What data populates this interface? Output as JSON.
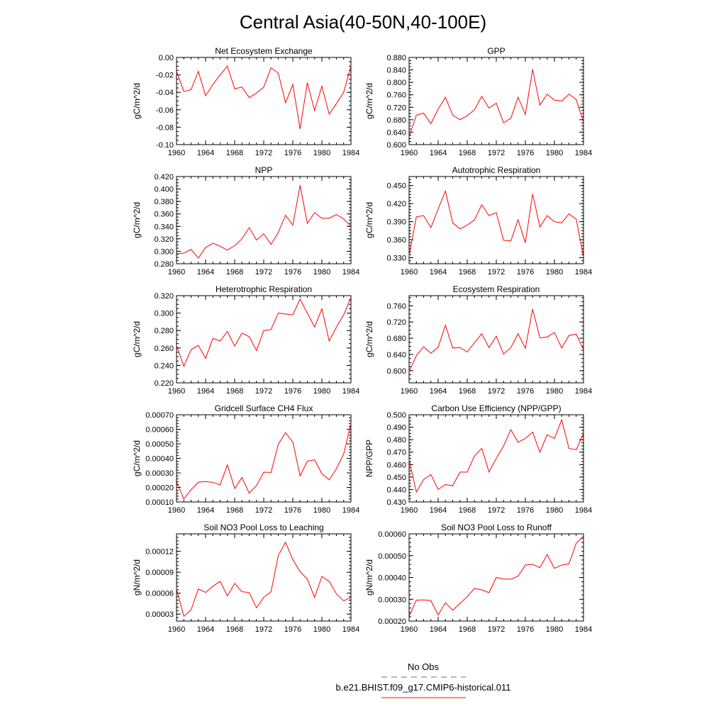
{
  "figure": {
    "title": "Central Asia(40-50N,40-100E)",
    "legend": [
      {
        "label": "No Obs",
        "color": "#6666dd",
        "dash": true
      },
      {
        "label": "b.e21.BHIST.f09_g17.CMIP6-historical.011",
        "color": "#ff0000",
        "dash": false
      }
    ]
  },
  "chart_data": [
    {
      "type": "line",
      "title": "Net Ecosystem Exchange",
      "ylabel": "gC/m^2/d",
      "xlim": [
        1960,
        1984
      ],
      "xticks": [
        1960,
        1964,
        1968,
        1972,
        1976,
        1980,
        1984
      ],
      "ylim": [
        -0.1,
        0.0
      ],
      "yticks": [
        "-0.10",
        "-0.08",
        "-0.06",
        "-0.04",
        "-0.02",
        "0.00"
      ],
      "ytick_values": [
        -0.1,
        -0.08,
        -0.06,
        -0.04,
        -0.02,
        0.0
      ],
      "yminor": 0.005,
      "x": [
        1960,
        1961,
        1962,
        1963,
        1964,
        1965,
        1966,
        1967,
        1968,
        1969,
        1970,
        1971,
        1972,
        1973,
        1974,
        1975,
        1976,
        1977,
        1978,
        1979,
        1980,
        1981,
        1982,
        1983,
        1984
      ],
      "y": [
        -0.016,
        -0.039,
        -0.037,
        -0.016,
        -0.044,
        -0.031,
        -0.02,
        -0.01,
        -0.036,
        -0.034,
        -0.046,
        -0.041,
        -0.034,
        -0.012,
        -0.018,
        -0.052,
        -0.031,
        -0.082,
        -0.029,
        -0.061,
        -0.033,
        -0.065,
        -0.053,
        -0.04,
        -0.01
      ]
    },
    {
      "type": "line",
      "title": "GPP",
      "ylabel": "gC/m^2/d",
      "xlim": [
        1960,
        1984
      ],
      "xticks": [
        1960,
        1964,
        1968,
        1972,
        1976,
        1980,
        1984
      ],
      "ylim": [
        0.6,
        0.88
      ],
      "yticks": [
        "0.600",
        "0.640",
        "0.680",
        "0.720",
        "0.760",
        "0.800",
        "0.840",
        "0.880"
      ],
      "ytick_values": [
        0.6,
        0.64,
        0.68,
        0.72,
        0.76,
        0.8,
        0.84,
        0.88
      ],
      "yminor": 0.01,
      "x": [
        1960,
        1961,
        1962,
        1963,
        1964,
        1965,
        1966,
        1967,
        1968,
        1969,
        1970,
        1971,
        1972,
        1973,
        1974,
        1975,
        1976,
        1977,
        1978,
        1979,
        1980,
        1981,
        1982,
        1983,
        1984
      ],
      "y": [
        0.625,
        0.695,
        0.701,
        0.667,
        0.714,
        0.752,
        0.695,
        0.68,
        0.693,
        0.712,
        0.755,
        0.717,
        0.733,
        0.67,
        0.685,
        0.752,
        0.697,
        0.842,
        0.727,
        0.762,
        0.743,
        0.74,
        0.762,
        0.745,
        0.672
      ]
    },
    {
      "type": "line",
      "title": "NPP",
      "ylabel": "gC/m^2/d",
      "xlim": [
        1960,
        1984
      ],
      "xticks": [
        1960,
        1964,
        1968,
        1972,
        1976,
        1980,
        1984
      ],
      "ylim": [
        0.28,
        0.42
      ],
      "yticks": [
        "0.280",
        "0.300",
        "0.320",
        "0.340",
        "0.360",
        "0.380",
        "0.400",
        "0.420"
      ],
      "ytick_values": [
        0.28,
        0.3,
        0.32,
        0.34,
        0.36,
        0.38,
        0.4,
        0.42
      ],
      "yminor": 0.005,
      "x": [
        1960,
        1961,
        1962,
        1963,
        1964,
        1965,
        1966,
        1967,
        1968,
        1969,
        1970,
        1971,
        1972,
        1973,
        1974,
        1975,
        1976,
        1977,
        1978,
        1979,
        1980,
        1981,
        1982,
        1983,
        1984
      ],
      "y": [
        0.296,
        0.297,
        0.303,
        0.289,
        0.306,
        0.313,
        0.308,
        0.302,
        0.309,
        0.32,
        0.338,
        0.318,
        0.328,
        0.311,
        0.33,
        0.358,
        0.342,
        0.406,
        0.345,
        0.362,
        0.353,
        0.353,
        0.359,
        0.352,
        0.34
      ]
    },
    {
      "type": "line",
      "title": "Autotrophic Respiration",
      "ylabel": "gC/m^2/d",
      "xlim": [
        1960,
        1984
      ],
      "xticks": [
        1960,
        1964,
        1968,
        1972,
        1976,
        1980,
        1984
      ],
      "ylim": [
        0.32,
        0.465
      ],
      "yticks": [
        "0.330",
        "0.360",
        "0.390",
        "0.420",
        "0.450"
      ],
      "ytick_values": [
        0.33,
        0.36,
        0.39,
        0.42,
        0.45
      ],
      "yminor": 0.005,
      "x": [
        1960,
        1961,
        1962,
        1963,
        1964,
        1965,
        1966,
        1967,
        1968,
        1969,
        1970,
        1971,
        1972,
        1973,
        1974,
        1975,
        1976,
        1977,
        1978,
        1979,
        1980,
        1981,
        1982,
        1983,
        1984
      ],
      "y": [
        0.333,
        0.398,
        0.4,
        0.38,
        0.411,
        0.441,
        0.388,
        0.378,
        0.384,
        0.393,
        0.418,
        0.4,
        0.405,
        0.359,
        0.358,
        0.393,
        0.355,
        0.436,
        0.381,
        0.4,
        0.39,
        0.388,
        0.403,
        0.394,
        0.331
      ]
    },
    {
      "type": "line",
      "title": "Heterotrophic Respiration",
      "ylabel": "gC/m^2/d",
      "xlim": [
        1960,
        1984
      ],
      "xticks": [
        1960,
        1964,
        1968,
        1972,
        1976,
        1980,
        1984
      ],
      "ylim": [
        0.22,
        0.32
      ],
      "yticks": [
        "0.220",
        "0.240",
        "0.260",
        "0.280",
        "0.300",
        "0.320"
      ],
      "ytick_values": [
        0.22,
        0.24,
        0.26,
        0.28,
        0.3,
        0.32
      ],
      "yminor": 0.005,
      "x": [
        1960,
        1961,
        1962,
        1963,
        1964,
        1965,
        1966,
        1967,
        1968,
        1969,
        1970,
        1971,
        1972,
        1973,
        1974,
        1975,
        1976,
        1977,
        1978,
        1979,
        1980,
        1981,
        1982,
        1983,
        1984
      ],
      "y": [
        0.263,
        0.239,
        0.258,
        0.263,
        0.248,
        0.271,
        0.268,
        0.279,
        0.262,
        0.277,
        0.273,
        0.257,
        0.28,
        0.281,
        0.3,
        0.299,
        0.298,
        0.316,
        0.3,
        0.284,
        0.305,
        0.268,
        0.284,
        0.298,
        0.318
      ]
    },
    {
      "type": "line",
      "title": "Ecosystem Respiration",
      "ylabel": "gC/m^2/d",
      "xlim": [
        1960,
        1984
      ],
      "xticks": [
        1960,
        1964,
        1968,
        1972,
        1976,
        1980,
        1984
      ],
      "ylim": [
        0.57,
        0.785
      ],
      "yticks": [
        "0.600",
        "0.640",
        "0.680",
        "0.720",
        "0.760"
      ],
      "ytick_values": [
        0.6,
        0.64,
        0.68,
        0.72,
        0.76
      ],
      "yminor": 0.01,
      "x": [
        1960,
        1961,
        1962,
        1963,
        1964,
        1965,
        1966,
        1967,
        1968,
        1969,
        1970,
        1971,
        1972,
        1973,
        1974,
        1975,
        1976,
        1977,
        1978,
        1979,
        1980,
        1981,
        1982,
        1983,
        1984
      ],
      "y": [
        0.598,
        0.637,
        0.659,
        0.643,
        0.658,
        0.712,
        0.656,
        0.657,
        0.646,
        0.669,
        0.691,
        0.657,
        0.685,
        0.641,
        0.657,
        0.691,
        0.655,
        0.752,
        0.681,
        0.683,
        0.694,
        0.656,
        0.687,
        0.69,
        0.652
      ]
    },
    {
      "type": "line",
      "title": "Gridcell Surface CH4 Flux",
      "ylabel": "gC/m^2/d",
      "xlim": [
        1960,
        1984
      ],
      "xticks": [
        1960,
        1964,
        1968,
        1972,
        1976,
        1980,
        1984
      ],
      "ylim": [
        0.0001,
        0.0007
      ],
      "yticks": [
        "0.00010",
        "0.00020",
        "0.00030",
        "0.00040",
        "0.00050",
        "0.00060",
        "0.00070"
      ],
      "ytick_values": [
        0.0001,
        0.0002,
        0.0003,
        0.0004,
        0.0005,
        0.0006,
        0.0007
      ],
      "yminor": 2e-05,
      "x": [
        1960,
        1961,
        1962,
        1963,
        1964,
        1965,
        1966,
        1967,
        1968,
        1969,
        1970,
        1971,
        1972,
        1973,
        1974,
        1975,
        1976,
        1977,
        1978,
        1979,
        1980,
        1981,
        1982,
        1983,
        1984
      ],
      "y": [
        0.00024,
        0.00012,
        0.000185,
        0.000236,
        0.00024,
        0.000235,
        0.000218,
        0.000355,
        0.000193,
        0.000268,
        0.000161,
        0.000212,
        0.000305,
        0.000303,
        0.000497,
        0.000577,
        0.000513,
        0.00028,
        0.00038,
        0.00039,
        0.000295,
        0.000252,
        0.000328,
        0.00043,
        0.00064
      ]
    },
    {
      "type": "line",
      "title": "Carbon Use Efficiency (NPP/GPP)",
      "ylabel": "NPP/GPP",
      "xlim": [
        1960,
        1984
      ],
      "xticks": [
        1960,
        1964,
        1968,
        1972,
        1976,
        1980,
        1984
      ],
      "ylim": [
        0.43,
        0.5
      ],
      "yticks": [
        "0.430",
        "0.440",
        "0.450",
        "0.460",
        "0.470",
        "0.480",
        "0.490",
        "0.500"
      ],
      "ytick_values": [
        0.43,
        0.44,
        0.45,
        0.46,
        0.47,
        0.48,
        0.49,
        0.5
      ],
      "yminor": 0.0025,
      "x": [
        1960,
        1961,
        1962,
        1963,
        1964,
        1965,
        1966,
        1967,
        1968,
        1969,
        1970,
        1971,
        1972,
        1973,
        1974,
        1975,
        1976,
        1977,
        1978,
        1979,
        1980,
        1981,
        1982,
        1983,
        1984
      ],
      "y": [
        0.464,
        0.438,
        0.448,
        0.452,
        0.44,
        0.444,
        0.443,
        0.454,
        0.454,
        0.467,
        0.473,
        0.454,
        0.465,
        0.475,
        0.488,
        0.478,
        0.481,
        0.486,
        0.47,
        0.484,
        0.481,
        0.496,
        0.473,
        0.472,
        0.485
      ]
    },
    {
      "type": "line",
      "title": "Soil NO3 Pool Loss to Leaching",
      "ylabel": "gN/m^2/d",
      "xlim": [
        1960,
        1984
      ],
      "xticks": [
        1960,
        1964,
        1968,
        1972,
        1976,
        1980,
        1984
      ],
      "ylim": [
        2e-05,
        0.000145
      ],
      "yticks": [
        "0.00003",
        "0.00006",
        "0.00009",
        "0.00012"
      ],
      "ytick_values": [
        3e-05,
        6e-05,
        9e-05,
        0.00012
      ],
      "yminor": 5e-06,
      "x": [
        1960,
        1961,
        1962,
        1963,
        1964,
        1965,
        1966,
        1967,
        1968,
        1969,
        1970,
        1971,
        1972,
        1973,
        1974,
        1975,
        1976,
        1977,
        1978,
        1979,
        1980,
        1981,
        1982,
        1983,
        1984
      ],
      "y": [
        6.6e-05,
        2.7e-05,
        3.6e-05,
        6.6e-05,
        6.1e-05,
        7e-05,
        7.7e-05,
        5.6e-05,
        7.4e-05,
        6.2e-05,
        6.1e-05,
        3.9e-05,
        5.4e-05,
        6.2e-05,
        0.000114,
        0.000133,
        0.000108,
        9.1e-05,
        8e-05,
        5.4e-05,
        8.4e-05,
        7.7e-05,
        5.9e-05,
        4.9e-05,
        5.4e-05
      ]
    },
    {
      "type": "line",
      "title": "Soil NO3 Pool Loss to Runoff",
      "ylabel": "gN/m^2/d",
      "xlim": [
        1960,
        1984
      ],
      "xticks": [
        1960,
        1964,
        1968,
        1972,
        1976,
        1980,
        1984
      ],
      "ylim": [
        0.0002,
        0.0006
      ],
      "yticks": [
        "0.00020",
        "0.00030",
        "0.00040",
        "0.00050",
        "0.00060"
      ],
      "ytick_values": [
        0.0002,
        0.0003,
        0.0004,
        0.0005,
        0.0006
      ],
      "yminor": 2e-05,
      "x": [
        1960,
        1961,
        1962,
        1963,
        1964,
        1965,
        1966,
        1967,
        1968,
        1969,
        1970,
        1971,
        1972,
        1973,
        1974,
        1975,
        1976,
        1977,
        1978,
        1979,
        1980,
        1981,
        1982,
        1983,
        1984
      ],
      "y": [
        0.000222,
        0.000296,
        0.000297,
        0.000294,
        0.000228,
        0.000284,
        0.00025,
        0.00028,
        0.000312,
        0.00035,
        0.000343,
        0.00033,
        0.0004,
        0.000393,
        0.000392,
        0.000406,
        0.000457,
        0.00046,
        0.000445,
        0.000505,
        0.000442,
        0.000457,
        0.000462,
        0.000557,
        0.00059
      ]
    }
  ]
}
